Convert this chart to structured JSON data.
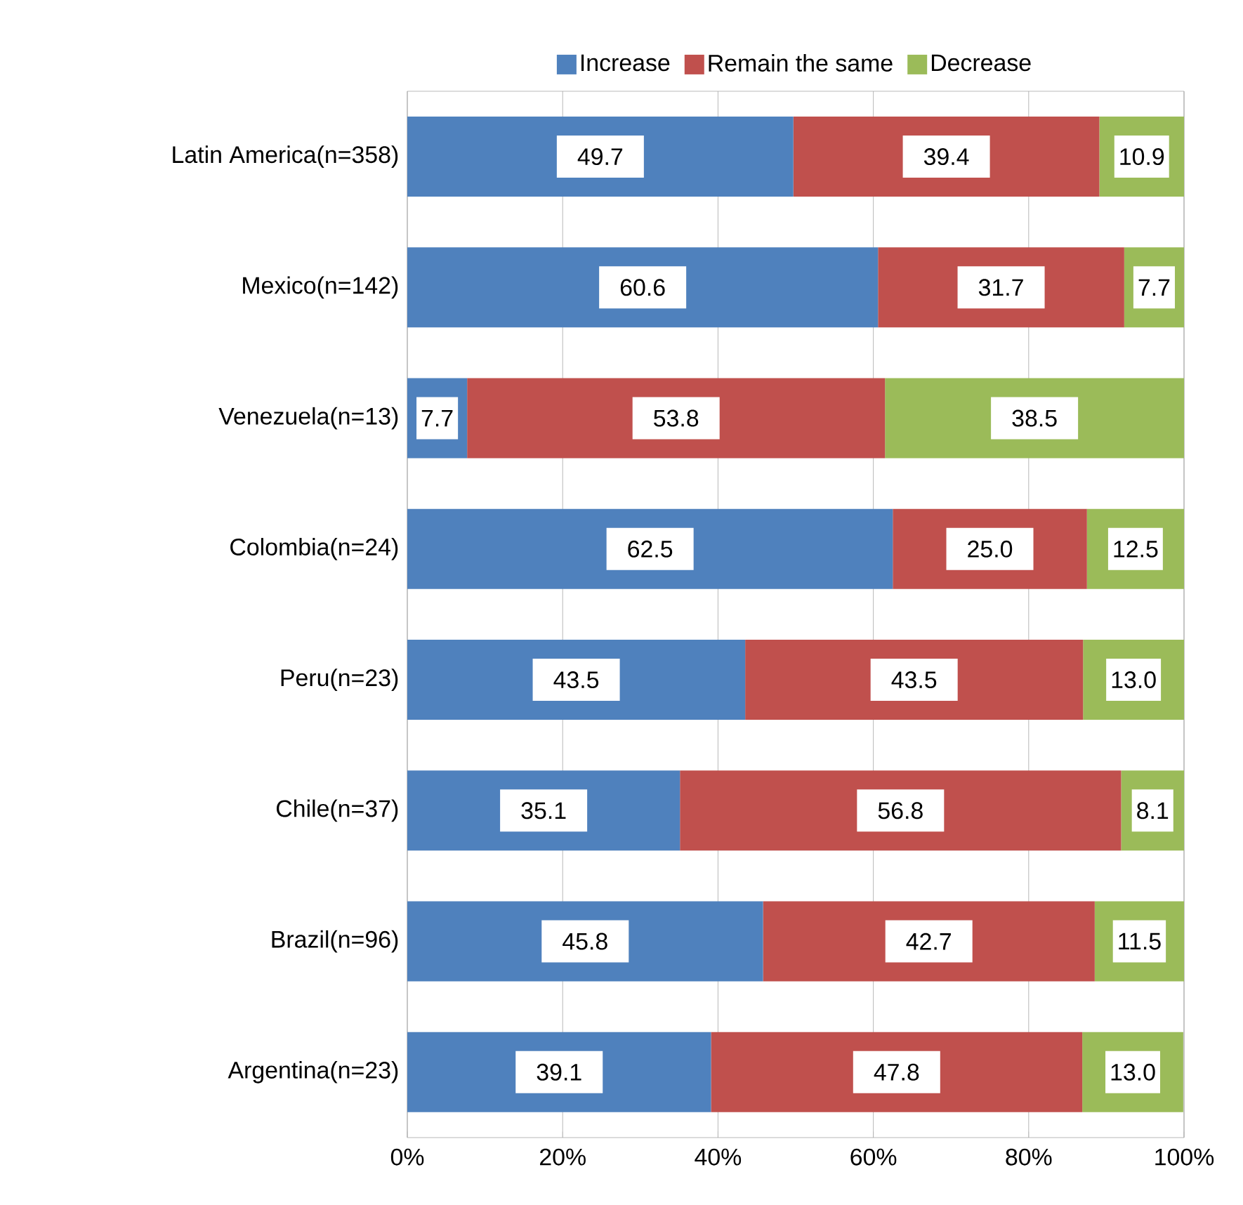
{
  "chart_data": {
    "type": "bar",
    "orientation": "horizontal",
    "stacked": true,
    "categories": [
      "Latin America(n=358)",
      "Mexico(n=142)",
      "Venezuela(n=13)",
      "Colombia(n=24)",
      "Peru(n=23)",
      "Chile(n=37)",
      "Brazil(n=96)",
      "Argentina(n=23)"
    ],
    "series": [
      {
        "name": "Increase",
        "color": "#4f81bd",
        "values": [
          49.7,
          60.6,
          7.7,
          62.5,
          43.5,
          35.1,
          45.8,
          39.1
        ],
        "value_labels": [
          "49.7",
          "60.6",
          "7.7",
          "62.5",
          "43.5",
          "35.1",
          "45.8",
          "39.1"
        ]
      },
      {
        "name": "Remain the same",
        "color": "#c0504d",
        "values": [
          39.4,
          31.7,
          53.8,
          25.0,
          43.5,
          56.8,
          42.7,
          47.8
        ],
        "value_labels": [
          "39.4",
          "31.7",
          "53.8",
          "25.0",
          "43.5",
          "56.8",
          "42.7",
          "47.8"
        ]
      },
      {
        "name": "Decrease",
        "color": "#9bbb59",
        "values": [
          10.9,
          7.7,
          38.5,
          12.5,
          13.0,
          8.1,
          11.5,
          13.0
        ],
        "value_labels": [
          "10.9",
          "7.7",
          "38.5",
          "12.5",
          "13.0",
          "8.1",
          "11.5",
          "13.0"
        ]
      }
    ],
    "xlim": [
      0,
      100
    ],
    "xticks": [
      {
        "value": 0,
        "label": "0%"
      },
      {
        "value": 20,
        "label": "20%"
      },
      {
        "value": 40,
        "label": "40%"
      },
      {
        "value": 60,
        "label": "60%"
      },
      {
        "value": 80,
        "label": "80%"
      },
      {
        "value": 100,
        "label": "100%"
      }
    ],
    "grid": "x",
    "legend": "top"
  }
}
